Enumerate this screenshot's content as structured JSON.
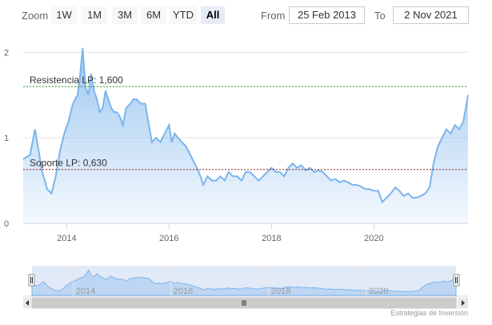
{
  "toolbar": {
    "zoom_label": "Zoom",
    "buttons": [
      {
        "label": "1W",
        "active": false
      },
      {
        "label": "1M",
        "active": false
      },
      {
        "label": "3M",
        "active": false
      },
      {
        "label": "6M",
        "active": false
      },
      {
        "label": "YTD",
        "active": false
      },
      {
        "label": "All",
        "active": true
      }
    ],
    "from_label": "From",
    "from_value": "25 Feb 2013",
    "to_label": "To",
    "to_value": "2 Nov 2021"
  },
  "credits": "Estrategias de Inversión",
  "colors": {
    "line": "#7cb5ec",
    "resistance": "#2e8b2e",
    "support": "#8b1a1a",
    "grid": "#e6e6e6"
  },
  "chart_data": {
    "type": "area",
    "xlim": [
      "2013-02-25",
      "2021-11-02"
    ],
    "ylim": [
      0,
      2.2
    ],
    "y_ticks": [
      "0",
      "1",
      "2"
    ],
    "x_ticks": [
      "2014",
      "2016",
      "2018",
      "2020"
    ],
    "navigator_x_ticks": [
      "2014",
      "2016",
      "2018",
      "2020"
    ],
    "annotations": [
      {
        "label": "Resistencia LP: 1,600",
        "value": 1.6
      },
      {
        "label": "Soporte LP: 0,630",
        "value": 0.63
      }
    ],
    "x": [
      "2013-02-25",
      "2013-04-15",
      "2013-05-20",
      "2013-06-10",
      "2013-07-10",
      "2013-08-15",
      "2013-09-15",
      "2013-10-15",
      "2013-11-15",
      "2013-12-15",
      "2014-01-15",
      "2014-02-15",
      "2014-03-01",
      "2014-03-20",
      "2014-04-05",
      "2014-04-25",
      "2014-05-15",
      "2014-06-05",
      "2014-06-25",
      "2014-07-15",
      "2014-08-05",
      "2014-08-25",
      "2014-09-15",
      "2014-10-05",
      "2014-10-25",
      "2014-11-15",
      "2014-12-05",
      "2014-12-25",
      "2015-01-15",
      "2015-02-05",
      "2015-03-01",
      "2015-04-01",
      "2015-04-20",
      "2015-05-15",
      "2015-06-15",
      "2015-07-15",
      "2015-08-10",
      "2015-09-01",
      "2015-10-01",
      "2015-11-01",
      "2015-12-01",
      "2016-01-01",
      "2016-01-20",
      "2016-02-10",
      "2016-03-05",
      "2016-04-01",
      "2016-05-01",
      "2016-06-01",
      "2016-07-01",
      "2016-08-01",
      "2016-09-01",
      "2016-10-01",
      "2016-11-01",
      "2016-12-01",
      "2017-01-01",
      "2017-02-01",
      "2017-03-01",
      "2017-04-01",
      "2017-05-01",
      "2017-06-01",
      "2017-07-01",
      "2017-08-01",
      "2017-09-01",
      "2017-10-01",
      "2017-11-01",
      "2017-12-01",
      "2018-01-01",
      "2018-02-01",
      "2018-03-01",
      "2018-04-01",
      "2018-05-01",
      "2018-06-01",
      "2018-07-01",
      "2018-08-01",
      "2018-09-01",
      "2018-10-01",
      "2018-11-01",
      "2018-12-01",
      "2019-01-01",
      "2019-02-01",
      "2019-03-01",
      "2019-04-01",
      "2019-05-01",
      "2019-06-01",
      "2019-07-01",
      "2019-08-01",
      "2019-09-01",
      "2019-10-01",
      "2019-11-01",
      "2019-12-01",
      "2020-01-01",
      "2020-02-01",
      "2020-03-01",
      "2020-04-01",
      "2020-05-01",
      "2020-06-01",
      "2020-07-01",
      "2020-08-01",
      "2020-09-01",
      "2020-10-01",
      "2020-11-01",
      "2020-12-01",
      "2021-01-01",
      "2021-02-01",
      "2021-03-01",
      "2021-04-01",
      "2021-05-01",
      "2021-06-01",
      "2021-07-01",
      "2021-08-01",
      "2021-09-01",
      "2021-10-01",
      "2021-11-02"
    ],
    "series": [
      {
        "values": [
          0.75,
          0.8,
          1.1,
          0.9,
          0.6,
          0.4,
          0.35,
          0.55,
          0.85,
          1.05,
          1.2,
          1.4,
          1.45,
          1.5,
          1.7,
          2.05,
          1.6,
          1.5,
          1.75,
          1.55,
          1.45,
          1.3,
          1.35,
          1.55,
          1.45,
          1.35,
          1.3,
          1.3,
          1.25,
          1.15,
          1.35,
          1.4,
          1.45,
          1.45,
          1.4,
          1.4,
          1.15,
          0.95,
          1.0,
          0.95,
          1.05,
          1.15,
          0.95,
          1.05,
          1.0,
          0.95,
          0.9,
          0.8,
          0.7,
          0.6,
          0.45,
          0.55,
          0.5,
          0.5,
          0.55,
          0.5,
          0.6,
          0.55,
          0.55,
          0.5,
          0.6,
          0.6,
          0.55,
          0.5,
          0.55,
          0.6,
          0.65,
          0.6,
          0.6,
          0.55,
          0.65,
          0.7,
          0.65,
          0.68,
          0.62,
          0.65,
          0.6,
          0.62,
          0.6,
          0.55,
          0.5,
          0.52,
          0.48,
          0.5,
          0.48,
          0.45,
          0.45,
          0.43,
          0.4,
          0.4,
          0.38,
          0.38,
          0.25,
          0.3,
          0.35,
          0.42,
          0.38,
          0.32,
          0.35,
          0.3,
          0.3,
          0.32,
          0.35,
          0.42,
          0.7,
          0.9,
          1.0,
          1.1,
          1.05,
          1.15,
          1.1,
          1.2,
          1.5
        ]
      }
    ]
  }
}
